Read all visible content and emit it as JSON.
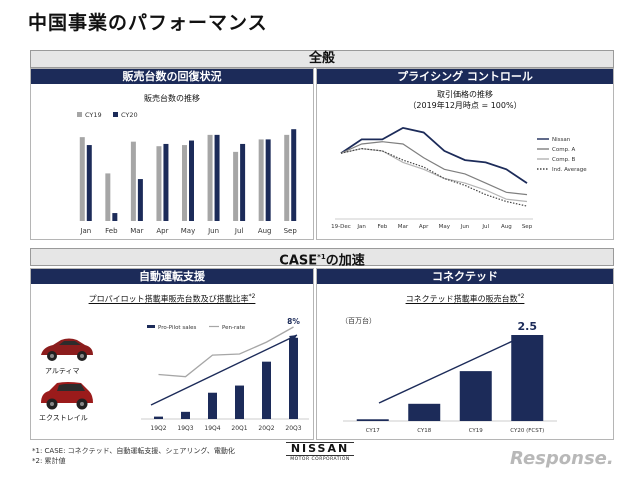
{
  "page": {
    "title": "中国事業のパフォーマンス",
    "section1": "全般",
    "section2": "CASE",
    "section2_sup": "*1",
    "section2_suffix": "の加速",
    "footnote1": "*1: CASE: コネクテッド、自動運転支援、シェアリング、電動化",
    "footnote2": "*2: 累計値",
    "logo_main": "NISSAN",
    "logo_sub": "MOTOR CORPORATION",
    "watermark": "Response."
  },
  "panels": {
    "sales": {
      "header": "販売台数の回復状況",
      "subtitle": "販売台数の推移"
    },
    "pricing": {
      "header": "プライシング コントロール",
      "subtitle1": "取引価格の推移",
      "subtitle2": "（2019年12月時点 = 100%）"
    },
    "propilot": {
      "header": "自動運転支援",
      "subtitle": "プロパイロット搭載車販売台数及び搭載比率",
      "subtitle_sup": "*2"
    },
    "connected": {
      "header": "コネクテッド",
      "subtitle": "コネクテッド搭載車の販売台数",
      "subtitle_sup": "*2"
    }
  },
  "car_labels": {
    "altima": "アルティマ",
    "xtrail": "エクストレイル"
  },
  "chart_data": [
    {
      "type": "bar",
      "categories": [
        "Jan",
        "Feb",
        "Mar",
        "Apr",
        "May",
        "Jun",
        "Jul",
        "Aug",
        "Sep"
      ],
      "series": [
        {
          "name": "CY19",
          "values": [
            74,
            42,
            70,
            66,
            67,
            76,
            61,
            72,
            76
          ],
          "color": "#a6a6a6"
        },
        {
          "name": "CY20",
          "values": [
            67,
            7,
            37,
            68,
            71,
            76,
            68,
            72,
            81
          ],
          "color": "#1c2b59"
        }
      ],
      "ylim": [
        0,
        90
      ],
      "legend": "top-left",
      "grid": false
    },
    {
      "type": "line",
      "x": [
        "19-Dec",
        "Jan",
        "Feb",
        "Mar",
        "Apr",
        "May",
        "Jun",
        "Jul",
        "Aug",
        "Sep"
      ],
      "series": [
        {
          "name": "Nissan",
          "values": [
            100,
            100.6,
            100.6,
            101.1,
            100.9,
            100.1,
            99.7,
            99.6,
            99.3,
            98.7
          ],
          "color": "#1c2b59",
          "style": "solid"
        },
        {
          "name": "Comp. A",
          "values": [
            100,
            100.4,
            100.5,
            100.4,
            99.8,
            99.3,
            99.1,
            98.7,
            98.3,
            98.2
          ],
          "color": "#7f7f7f",
          "style": "solid"
        },
        {
          "name": "Comp. B",
          "values": [
            100,
            100.2,
            100.1,
            99.6,
            99.3,
            98.9,
            98.7,
            98.4,
            98.0,
            97.9
          ],
          "color": "#b4b4b4",
          "style": "solid"
        },
        {
          "name": "Ind. Average",
          "values": [
            100,
            100.2,
            100.1,
            99.7,
            99.4,
            98.9,
            98.6,
            98.2,
            97.9,
            97.7
          ],
          "color": "#444444",
          "style": "dotted"
        }
      ],
      "ylim": [
        97.4,
        101.4
      ],
      "legend": "right",
      "grid": false
    },
    {
      "type": "bar",
      "categories": [
        "19Q2",
        "19Q3",
        "19Q4",
        "20Q1",
        "20Q2",
        "20Q3"
      ],
      "series": [
        {
          "name": "Pro-Pilot sales",
          "values": [
            1,
            3,
            11,
            14,
            24,
            34
          ],
          "color": "#1c2b59"
        },
        {
          "name": "Pen-rate",
          "values": [
            3.6,
            3.4,
            5.4,
            5.5,
            6.6,
            8.0
          ],
          "color": "#a6a6a6",
          "type": "line"
        }
      ],
      "annotations": [
        "8%"
      ],
      "legend": "top"
    },
    {
      "type": "bar",
      "categories": [
        "CY17",
        "CY18",
        "CY19",
        "CY20 (FCST)"
      ],
      "values": [
        0.05,
        0.5,
        1.45,
        2.5
      ],
      "unit_label": "（百万台）",
      "annotations": [
        "2.5"
      ],
      "color": "#1c2b59"
    }
  ]
}
